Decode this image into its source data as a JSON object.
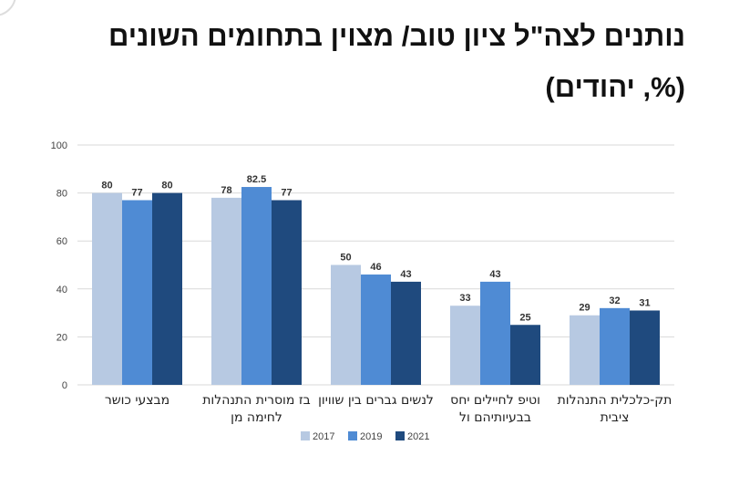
{
  "title_line1": "נותנים לצה\"ל ציון טוב/ מצוין בתחומים השונים",
  "title_line2": "(%, יהודים)",
  "colors": {
    "2017": "#b7c9e2",
    "2019": "#4f8bd4",
    "2021": "#1f4a7e"
  },
  "chart_data": {
    "type": "bar",
    "title": "נותנים לצה\"ל ציון טוב/ מצוין בתחומים השונים (%, יהודים)",
    "categories": [
      [
        "מבצעי כושר"
      ],
      [
        "בז מוסרית התנהלות",
        "לחימה מן"
      ],
      [
        "לנשים גברים בין שוויון"
      ],
      [
        "וטיפ לחיילים יחס",
        "בבעיותיהם ול"
      ],
      [
        "תק-כלכלית התנהלות",
        "ציבית"
      ]
    ],
    "series": [
      {
        "name": "2017",
        "values": [
          80,
          78,
          50,
          33,
          29
        ]
      },
      {
        "name": "2019",
        "values": [
          77,
          82.5,
          46,
          43,
          32
        ]
      },
      {
        "name": "2021",
        "values": [
          80,
          77,
          43,
          25,
          31
        ]
      }
    ],
    "ylim": [
      0,
      100
    ],
    "yticks": [
      0,
      20,
      40,
      60,
      80,
      100
    ],
    "xlabel": "",
    "ylabel": "",
    "grid": true,
    "legend": "bottom"
  }
}
